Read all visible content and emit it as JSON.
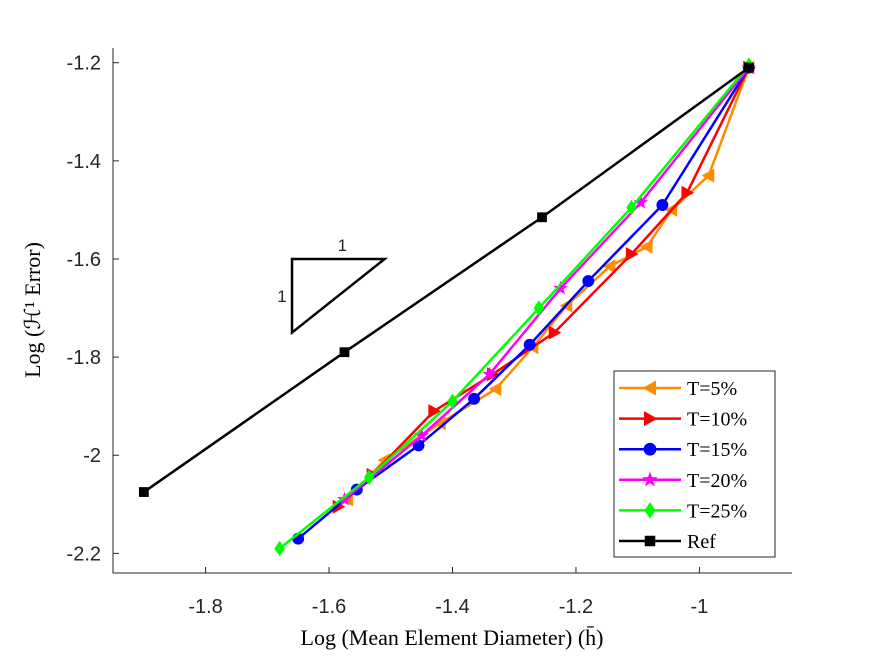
{
  "chart_data": {
    "type": "line",
    "xlabel": "Log (Mean Element Diameter) (h̄)",
    "ylabel": "Log (ℋ¹ Error)",
    "xlim": [
      -1.95,
      -0.85
    ],
    "ylim": [
      -2.24,
      -1.17
    ],
    "xticks": [
      -1.8,
      -1.6,
      -1.4,
      -1.2,
      -1.0
    ],
    "xtick_labels": [
      "-1.8",
      "-1.6",
      "-1.4",
      "-1.2",
      "-1"
    ],
    "yticks": [
      -1.2,
      -1.4,
      -1.6,
      -1.8,
      -2.0,
      -2.2
    ],
    "ytick_labels": [
      "-1.2",
      "-1.4",
      "-1.6",
      "-1.8",
      "-2",
      "-2.2"
    ],
    "legend_position": "bottom-right",
    "slope_triangle": {
      "vertices": [
        [
          -1.66,
          -1.6
        ],
        [
          -1.51,
          -1.6
        ],
        [
          -1.66,
          -1.75
        ]
      ],
      "run_label": "1",
      "rise_label": "1"
    },
    "series": [
      {
        "name": "T=5%",
        "color": "#FF8C00",
        "marker": "triangle-left",
        "x": [
          -0.92,
          -0.985,
          -1.045,
          -1.085,
          -1.145,
          -1.215,
          -1.27,
          -1.33,
          -1.42,
          -1.51,
          -1.57
        ],
        "y": [
          -1.21,
          -1.43,
          -1.5,
          -1.575,
          -1.615,
          -1.695,
          -1.78,
          -1.865,
          -1.935,
          -2.01,
          -2.09
        ]
      },
      {
        "name": "T=10%",
        "color": "#FF0000",
        "marker": "triangle-right",
        "x": [
          -0.92,
          -1.02,
          -1.11,
          -1.235,
          -1.335,
          -1.43,
          -1.53,
          -1.585
        ],
        "y": [
          -1.21,
          -1.465,
          -1.59,
          -1.75,
          -1.835,
          -1.91,
          -2.04,
          -2.105
        ]
      },
      {
        "name": "T=15%",
        "color": "#0000FF",
        "marker": "circle",
        "x": [
          -0.92,
          -1.06,
          -1.18,
          -1.275,
          -1.365,
          -1.455,
          -1.555,
          -1.65
        ],
        "y": [
          -1.21,
          -1.49,
          -1.645,
          -1.775,
          -1.885,
          -1.98,
          -2.07,
          -2.17
        ]
      },
      {
        "name": "T=20%",
        "color": "#FF00FF",
        "marker": "star",
        "x": [
          -0.92,
          -1.095,
          -1.225,
          -1.34,
          -1.45,
          -1.575
        ],
        "y": [
          -1.21,
          -1.485,
          -1.66,
          -1.835,
          -1.96,
          -2.09
        ]
      },
      {
        "name": "T=25%",
        "color": "#00FF00",
        "marker": "diamond",
        "x": [
          -0.92,
          -1.11,
          -1.26,
          -1.4,
          -1.535,
          -1.68
        ],
        "y": [
          -1.205,
          -1.495,
          -1.7,
          -1.89,
          -2.045,
          -2.19
        ]
      },
      {
        "name": "Ref",
        "color": "#000000",
        "marker": "square",
        "x": [
          -0.92,
          -1.255,
          -1.575,
          -1.9
        ],
        "y": [
          -1.21,
          -1.515,
          -1.79,
          -2.075
        ]
      }
    ]
  }
}
